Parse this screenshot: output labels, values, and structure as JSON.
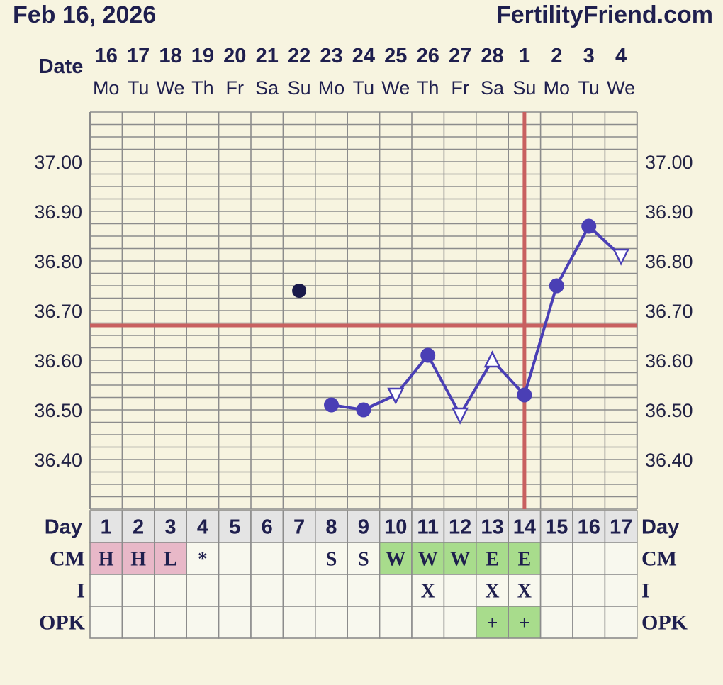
{
  "header": {
    "date": "Feb 16, 2026",
    "brand": "FertilityFriend.com",
    "date_label": "Date"
  },
  "colors": {
    "background": "#f7f4e0",
    "grid": "#8c8c8c",
    "line": "#4a3fb5",
    "coverline": "#c86060",
    "cm_menses": "#e8b8c8",
    "cm_fertile": "#a8dc8c",
    "day_row": "#e4e4e4",
    "outlier_dot": "#1a1a4a"
  },
  "chart_data": {
    "type": "line",
    "title": "",
    "dates": [
      "16",
      "17",
      "18",
      "19",
      "20",
      "21",
      "22",
      "23",
      "24",
      "25",
      "26",
      "27",
      "28",
      "1",
      "2",
      "3",
      "4"
    ],
    "weekdays": [
      "Mo",
      "Tu",
      "We",
      "Th",
      "Fr",
      "Sa",
      "Su",
      "Mo",
      "Tu",
      "We",
      "Th",
      "Fr",
      "Sa",
      "Su",
      "Mo",
      "Tu",
      "We"
    ],
    "cycle_days": [
      "1",
      "2",
      "3",
      "4",
      "5",
      "6",
      "7",
      "8",
      "9",
      "10",
      "11",
      "12",
      "13",
      "14",
      "15",
      "16",
      "17"
    ],
    "ylim": [
      36.3,
      37.1
    ],
    "y_ticks": [
      "36.40",
      "36.50",
      "36.60",
      "36.70",
      "36.80",
      "36.90",
      "37.00"
    ],
    "temperatures": [
      null,
      null,
      null,
      null,
      null,
      null,
      36.74,
      36.51,
      36.5,
      36.53,
      36.61,
      36.49,
      36.6,
      36.53,
      36.75,
      36.87,
      36.81
    ],
    "markers": [
      null,
      null,
      null,
      null,
      null,
      null,
      "discarded",
      "dot",
      "dot",
      "open-down",
      "dot",
      "open-down",
      "open-up",
      "dot",
      "dot",
      "dot",
      "open-down"
    ],
    "connected_from_day": 8,
    "coverline": 36.67,
    "ovulation_day": 14,
    "row_labels": {
      "day": "Day",
      "cm": "CM",
      "intercourse": "I",
      "opk": "OPK"
    },
    "cm": [
      "H",
      "H",
      "L",
      "*",
      "",
      "",
      "",
      "S",
      "S",
      "W",
      "W",
      "W",
      "E",
      "E",
      "",
      "",
      ""
    ],
    "cm_types": [
      "menses",
      "menses",
      "menses",
      "none",
      "none",
      "none",
      "none",
      "none",
      "none",
      "fertile",
      "fertile",
      "fertile",
      "fertile",
      "fertile",
      "none",
      "none",
      "none"
    ],
    "intercourse": [
      "",
      "",
      "",
      "",
      "",
      "",
      "",
      "",
      "",
      "",
      "X",
      "",
      "X",
      "X",
      "",
      "",
      ""
    ],
    "opk": [
      "",
      "",
      "",
      "",
      "",
      "",
      "",
      "",
      "",
      "",
      "",
      "",
      "+",
      "+",
      "",
      "",
      ""
    ]
  }
}
